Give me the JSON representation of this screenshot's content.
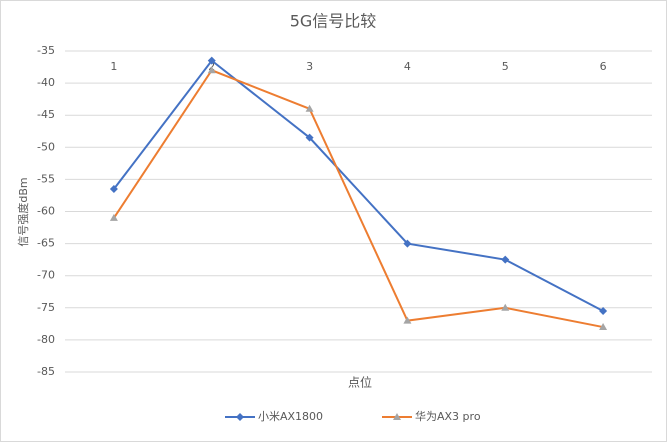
{
  "chart_data": {
    "type": "line",
    "title": "5G信号比较",
    "x_label": "点位",
    "y_label": "信号强度dBm",
    "categories": [
      "1",
      "2",
      "3",
      "4",
      "5",
      "6"
    ],
    "series": [
      {
        "name": "小米AX1800",
        "color": "#4472c4",
        "marker": "diamond",
        "marker_color": "#4472c4",
        "values": [
          -56.5,
          -36.5,
          -48.5,
          -65,
          -67.5,
          -75.5
        ]
      },
      {
        "name": "华为AX3 pro",
        "color": "#ed7d31",
        "marker": "triangle",
        "marker_color": "#a5a5a5",
        "values": [
          -61,
          -38,
          -44,
          -77,
          -75,
          -78
        ]
      }
    ],
    "ylim": [
      -85,
      -35
    ],
    "yticks": [
      -35,
      -40,
      -45,
      -50,
      -55,
      -60,
      -65,
      -70,
      -75,
      -80,
      -85
    ],
    "grid": true,
    "legend": "bottom"
  }
}
